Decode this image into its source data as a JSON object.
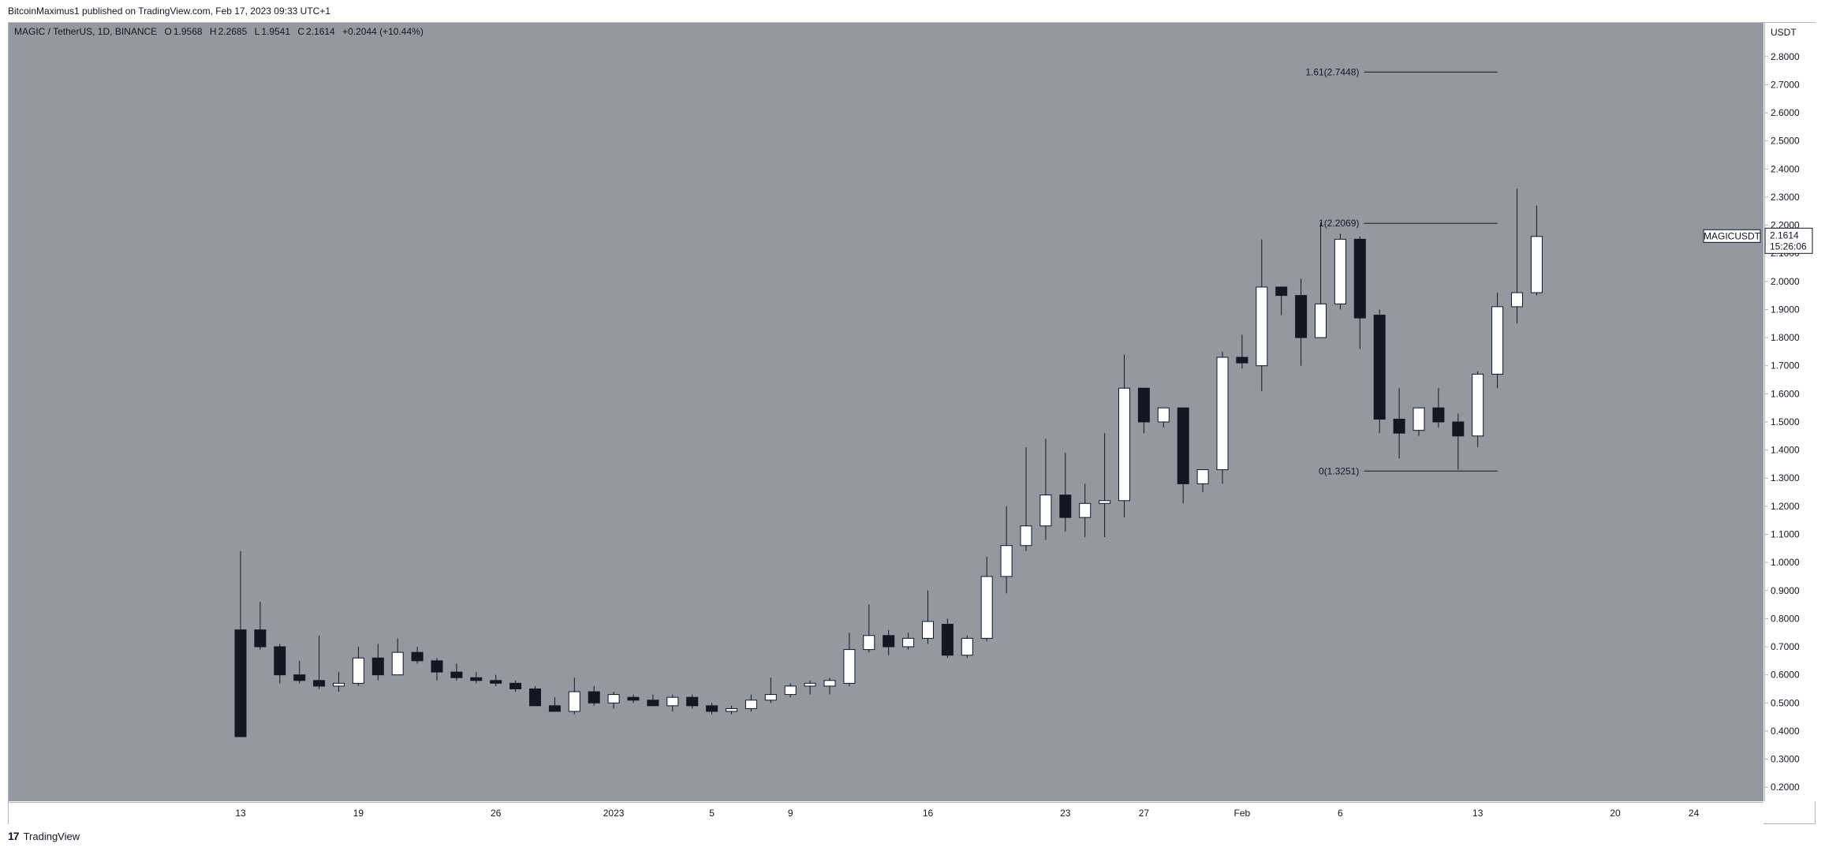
{
  "header": {
    "publisher_line": "BitcoinMaximus1 published on TradingView.com, Feb 17, 2023 09:33 UTC+1"
  },
  "legend": {
    "symbol": "MAGIC / TetherUS, 1D, BINANCE",
    "o_label": "O",
    "o_value": "1.9568",
    "h_label": "H",
    "h_value": "2.2685",
    "l_label": "L",
    "l_value": "1.9541",
    "c_label": "C",
    "c_value": "2.1614",
    "change": "+0.2044 (+10.44%)"
  },
  "price_tag": {
    "symbol": "MAGICUSDT",
    "price": "2.1614",
    "countdown": "15:26:06"
  },
  "footer": {
    "brand": "TradingView",
    "logo_text": "17"
  },
  "colors": {
    "background": "#9598a1",
    "up": "#ffffff",
    "down": "#131722",
    "wick": "#131722"
  },
  "chart_data": {
    "type": "candlestick",
    "currency_label": "USDT",
    "ylim": [
      0.15,
      2.92
    ],
    "y_ticks": [
      "0.2000",
      "0.3000",
      "0.4000",
      "0.5000",
      "0.6000",
      "0.7000",
      "0.8000",
      "0.9000",
      "1.0000",
      "1.1000",
      "1.2000",
      "1.3000",
      "1.4000",
      "1.5000",
      "1.6000",
      "1.7000",
      "1.8000",
      "1.9000",
      "2.0000",
      "2.1000",
      "2.2000",
      "2.3000",
      "2.4000",
      "2.5000",
      "2.6000",
      "2.7000",
      "2.8000"
    ],
    "x_ticks": [
      {
        "label": "13",
        "idx": 0
      },
      {
        "label": "19",
        "idx": 6
      },
      {
        "label": "26",
        "idx": 13
      },
      {
        "label": "2023",
        "idx": 19
      },
      {
        "label": "5",
        "idx": 24
      },
      {
        "label": "9",
        "idx": 28
      },
      {
        "label": "16",
        "idx": 35
      },
      {
        "label": "23",
        "idx": 42
      },
      {
        "label": "27",
        "idx": 46
      },
      {
        "label": "Feb",
        "idx": 51
      },
      {
        "label": "6",
        "idx": 56
      },
      {
        "label": "13",
        "idx": 63
      },
      {
        "label": "20",
        "idx": 70
      },
      {
        "label": "24",
        "idx": 74
      }
    ],
    "candles": [
      [
        0.76,
        1.04,
        0.38,
        0.38
      ],
      [
        0.76,
        0.86,
        0.69,
        0.7
      ],
      [
        0.7,
        0.71,
        0.57,
        0.6
      ],
      [
        0.6,
        0.65,
        0.57,
        0.58
      ],
      [
        0.58,
        0.74,
        0.55,
        0.56
      ],
      [
        0.56,
        0.61,
        0.54,
        0.57
      ],
      [
        0.57,
        0.7,
        0.56,
        0.66
      ],
      [
        0.66,
        0.71,
        0.58,
        0.6
      ],
      [
        0.6,
        0.73,
        0.6,
        0.68
      ],
      [
        0.68,
        0.7,
        0.64,
        0.65
      ],
      [
        0.65,
        0.66,
        0.58,
        0.61
      ],
      [
        0.61,
        0.64,
        0.58,
        0.59
      ],
      [
        0.59,
        0.61,
        0.57,
        0.58
      ],
      [
        0.58,
        0.6,
        0.56,
        0.57
      ],
      [
        0.57,
        0.58,
        0.54,
        0.55
      ],
      [
        0.55,
        0.56,
        0.49,
        0.49
      ],
      [
        0.49,
        0.52,
        0.47,
        0.47
      ],
      [
        0.47,
        0.59,
        0.46,
        0.54
      ],
      [
        0.54,
        0.56,
        0.49,
        0.5
      ],
      [
        0.5,
        0.54,
        0.48,
        0.53
      ],
      [
        0.52,
        0.53,
        0.5,
        0.51
      ],
      [
        0.51,
        0.53,
        0.49,
        0.49
      ],
      [
        0.49,
        0.53,
        0.47,
        0.52
      ],
      [
        0.52,
        0.53,
        0.48,
        0.49
      ],
      [
        0.49,
        0.5,
        0.46,
        0.47
      ],
      [
        0.47,
        0.49,
        0.46,
        0.48
      ],
      [
        0.48,
        0.53,
        0.47,
        0.51
      ],
      [
        0.51,
        0.59,
        0.5,
        0.53
      ],
      [
        0.53,
        0.57,
        0.52,
        0.56
      ],
      [
        0.56,
        0.58,
        0.53,
        0.57
      ],
      [
        0.56,
        0.59,
        0.53,
        0.58
      ],
      [
        0.57,
        0.75,
        0.56,
        0.69
      ],
      [
        0.69,
        0.85,
        0.68,
        0.74
      ],
      [
        0.74,
        0.76,
        0.67,
        0.7
      ],
      [
        0.7,
        0.75,
        0.69,
        0.73
      ],
      [
        0.73,
        0.9,
        0.71,
        0.79
      ],
      [
        0.78,
        0.8,
        0.66,
        0.67
      ],
      [
        0.67,
        0.74,
        0.66,
        0.73
      ],
      [
        0.73,
        1.02,
        0.72,
        0.95
      ],
      [
        0.95,
        1.2,
        0.89,
        1.06
      ],
      [
        1.06,
        1.41,
        1.04,
        1.13
      ],
      [
        1.13,
        1.44,
        1.08,
        1.24
      ],
      [
        1.24,
        1.39,
        1.11,
        1.16
      ],
      [
        1.16,
        1.28,
        1.09,
        1.21
      ],
      [
        1.21,
        1.46,
        1.09,
        1.22
      ],
      [
        1.22,
        1.74,
        1.16,
        1.62
      ],
      [
        1.62,
        1.61,
        1.46,
        1.5
      ],
      [
        1.5,
        1.55,
        1.48,
        1.55
      ],
      [
        1.55,
        1.55,
        1.21,
        1.28
      ],
      [
        1.28,
        1.33,
        1.25,
        1.33
      ],
      [
        1.33,
        1.75,
        1.28,
        1.73
      ],
      [
        1.73,
        1.81,
        1.69,
        1.71
      ],
      [
        1.7,
        2.15,
        1.61,
        1.98
      ],
      [
        1.98,
        1.97,
        1.88,
        1.95
      ],
      [
        1.95,
        2.01,
        1.7,
        1.8
      ],
      [
        1.8,
        2.21,
        1.8,
        1.92
      ],
      [
        1.92,
        2.17,
        1.9,
        2.15
      ],
      [
        2.15,
        2.16,
        1.76,
        1.87
      ],
      [
        1.88,
        1.9,
        1.46,
        1.51
      ],
      [
        1.51,
        1.62,
        1.37,
        1.46
      ],
      [
        1.47,
        1.55,
        1.45,
        1.55
      ],
      [
        1.55,
        1.62,
        1.48,
        1.5
      ],
      [
        1.5,
        1.53,
        1.33,
        1.45
      ],
      [
        1.45,
        1.68,
        1.41,
        1.67
      ],
      [
        1.67,
        1.96,
        1.62,
        1.91
      ],
      [
        1.91,
        2.33,
        1.85,
        1.96
      ],
      [
        1.96,
        2.27,
        1.95,
        2.16
      ]
    ],
    "annotations": [
      {
        "label": "1.61(2.7448)",
        "price": 2.7448,
        "start_idx": 56,
        "end_idx": 63
      },
      {
        "label": "1(2.2069)",
        "price": 2.2069,
        "start_idx": 56,
        "end_idx": 63
      },
      {
        "label": "0(1.3251)",
        "price": 1.3251,
        "start_idx": 56,
        "end_idx": 63
      }
    ],
    "last_price": 2.1614
  }
}
